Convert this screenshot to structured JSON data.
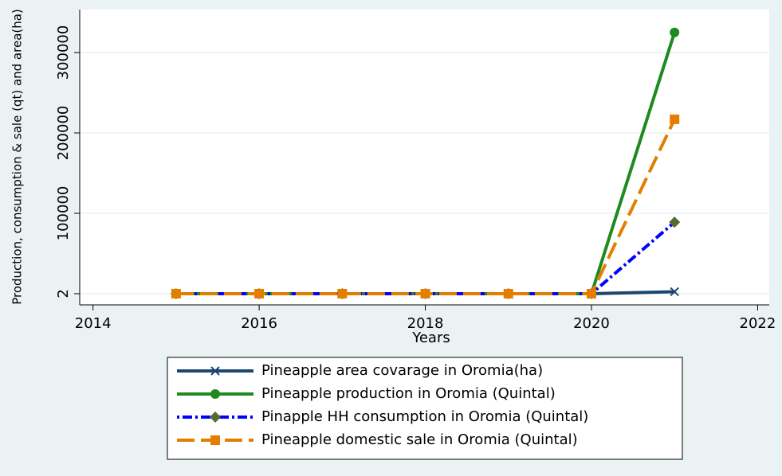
{
  "chart_data": {
    "type": "line",
    "x_label": "Years",
    "y_label": "Production, consumption & sale (qt) and area(ha)",
    "x": [
      2015,
      2016,
      2017,
      2018,
      2019,
      2020,
      2021
    ],
    "series": [
      {
        "name": "Pineapple  area covarage in Oromia(ha)",
        "color": "#1a476f",
        "dash": "solid",
        "marker": "x",
        "values": [
          2,
          2,
          2,
          2,
          2,
          2,
          2500
        ]
      },
      {
        "name": "Pineapple production in Oromia (Quintal)",
        "color": "#1f8a1f",
        "dash": "solid",
        "marker": "circle",
        "values": [
          2,
          2,
          2,
          2,
          2,
          2,
          325000
        ]
      },
      {
        "name": "Pinapple HH consumption in Oromia (Quintal)",
        "color": "#0000ff",
        "marker_color": "#556b2f",
        "dash": "dashdot",
        "marker": "diamond",
        "values": [
          2,
          2,
          2,
          2,
          2,
          2,
          89000
        ]
      },
      {
        "name": "Pineapple domestic sale in Oromia (Quintal)",
        "color": "#e37e00",
        "dash": "longdash",
        "marker": "square",
        "values": [
          2,
          2,
          2,
          2,
          2,
          2,
          217000
        ]
      }
    ],
    "xlim": [
      2013.84,
      2022.14
    ],
    "xticks": [
      2014,
      2016,
      2018,
      2020,
      2022
    ],
    "ylim": [
      -13900,
      353500
    ],
    "yticks": [
      2,
      100000,
      200000,
      300000
    ],
    "grid": true
  }
}
